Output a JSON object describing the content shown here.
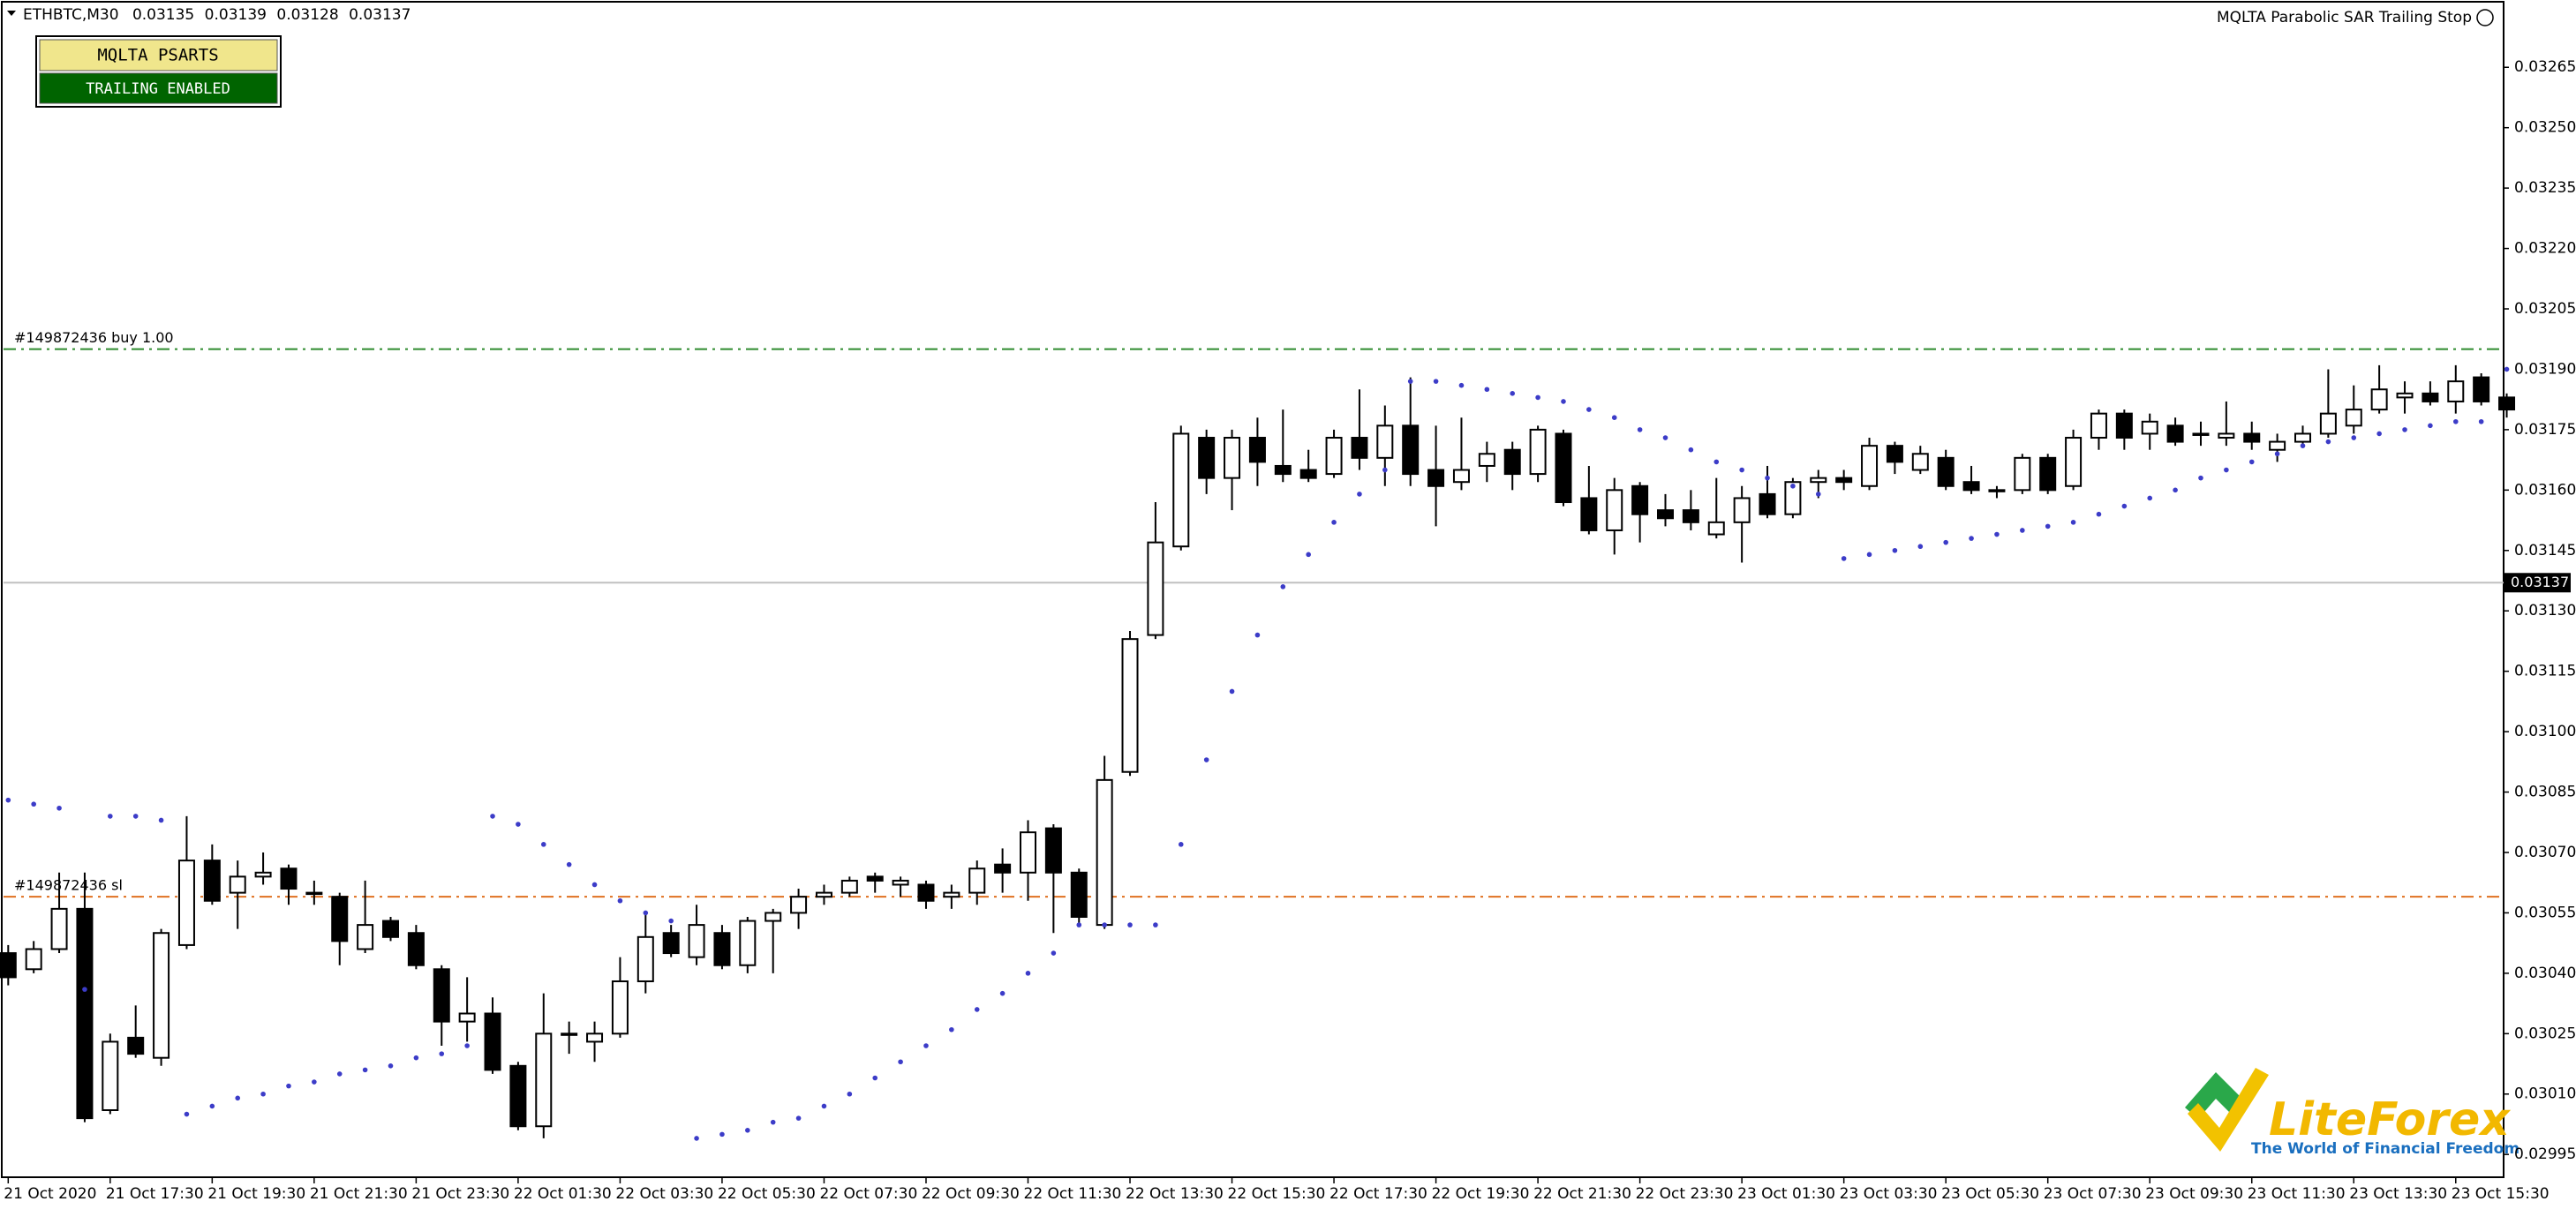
{
  "chart_data": {
    "type": "candlestick",
    "symbol": "ETHBTC,M30",
    "header_prices": [
      0.03135,
      0.03139,
      0.03128,
      0.03137
    ],
    "indicator_name": "MQLTA Parabolic SAR Trailing Stop",
    "panel": {
      "title": "MQLTA PSARTS",
      "status": "TRAILING ENABLED"
    },
    "logo": {
      "name": "LiteForex",
      "tagline": "The World of Financial Freedom"
    },
    "categories": [
      "21 Oct 2020",
      null,
      null,
      null,
      "21 Oct 17:30",
      null,
      null,
      null,
      "21 Oct 19:30",
      null,
      null,
      null,
      "21 Oct 21:30",
      null,
      null,
      null,
      "21 Oct 23:30",
      null,
      null,
      null,
      "22 Oct 01:30",
      null,
      null,
      null,
      "22 Oct 03:30",
      null,
      null,
      null,
      "22 Oct 05:30",
      null,
      null,
      null,
      "22 Oct 07:30",
      null,
      null,
      null,
      "22 Oct 09:30",
      null,
      null,
      null,
      "22 Oct 11:30",
      null,
      null,
      null,
      "22 Oct 13:30",
      null,
      null,
      null,
      "22 Oct 15:30",
      null,
      null,
      null,
      "22 Oct 17:30",
      null,
      null,
      null,
      "22 Oct 19:30",
      null,
      null,
      null,
      "22 Oct 21:30",
      null,
      null,
      null,
      "22 Oct 23:30",
      null,
      null,
      null,
      "23 Oct 01:30",
      null,
      null,
      null,
      "23 Oct 03:30",
      null,
      null,
      null,
      "23 Oct 05:30",
      null,
      null,
      null,
      "23 Oct 07:30",
      null,
      null,
      null,
      "23 Oct 09:30",
      null,
      null,
      null,
      "23 Oct 11:30",
      null,
      null,
      null,
      "23 Oct 13:30",
      null,
      null,
      null,
      "23 Oct 15:30",
      null,
      null
    ],
    "ohlc": [
      [
        0.03045,
        0.03047,
        0.03037,
        0.03039
      ],
      [
        0.03041,
        0.03048,
        0.0304,
        0.03046
      ],
      [
        0.03046,
        0.03065,
        0.03045,
        0.03056
      ],
      [
        0.03056,
        0.03065,
        0.03003,
        0.03004
      ],
      [
        0.03006,
        0.03025,
        0.03005,
        0.03023
      ],
      [
        0.03024,
        0.03032,
        0.03019,
        0.0302
      ],
      [
        0.03019,
        0.03051,
        0.03017,
        0.0305
      ],
      [
        0.03047,
        0.03079,
        0.03046,
        0.03068
      ],
      [
        0.03068,
        0.03072,
        0.03057,
        0.03058
      ],
      [
        0.0306,
        0.03068,
        0.03051,
        0.03064
      ],
      [
        0.03064,
        0.0307,
        0.03062,
        0.03065
      ],
      [
        0.03066,
        0.03067,
        0.03057,
        0.03061
      ],
      [
        0.0306,
        0.03063,
        0.03057,
        0.0306
      ],
      [
        0.03059,
        0.0306,
        0.03042,
        0.03048
      ],
      [
        0.03046,
        0.03063,
        0.03045,
        0.03052
      ],
      [
        0.03053,
        0.03054,
        0.03048,
        0.03049
      ],
      [
        0.0305,
        0.03052,
        0.03041,
        0.03042
      ],
      [
        0.03041,
        0.03042,
        0.03022,
        0.03028
      ],
      [
        0.03028,
        0.03039,
        0.03023,
        0.0303
      ],
      [
        0.0303,
        0.03034,
        0.03015,
        0.03016
      ],
      [
        0.03017,
        0.03018,
        0.03001,
        0.03002
      ],
      [
        0.03002,
        0.03035,
        0.02999,
        0.03025
      ],
      [
        0.03025,
        0.03028,
        0.0302,
        0.03025
      ],
      [
        0.03023,
        0.03028,
        0.03018,
        0.03025
      ],
      [
        0.03025,
        0.03044,
        0.03024,
        0.03038
      ],
      [
        0.03038,
        0.03055,
        0.03035,
        0.03049
      ],
      [
        0.0305,
        0.03052,
        0.03044,
        0.03045
      ],
      [
        0.03044,
        0.03057,
        0.03042,
        0.03052
      ],
      [
        0.0305,
        0.03052,
        0.03041,
        0.03042
      ],
      [
        0.03042,
        0.03054,
        0.0304,
        0.03053
      ],
      [
        0.03053,
        0.03056,
        0.0304,
        0.03055
      ],
      [
        0.03055,
        0.03061,
        0.03051,
        0.03059
      ],
      [
        0.03059,
        0.03062,
        0.03057,
        0.0306
      ],
      [
        0.0306,
        0.03064,
        0.03059,
        0.03063
      ],
      [
        0.03064,
        0.03065,
        0.0306,
        0.03063
      ],
      [
        0.03062,
        0.03064,
        0.03059,
        0.03063
      ],
      [
        0.03062,
        0.03063,
        0.03056,
        0.03058
      ],
      [
        0.03059,
        0.03062,
        0.03056,
        0.0306
      ],
      [
        0.0306,
        0.03068,
        0.03057,
        0.03066
      ],
      [
        0.03067,
        0.03071,
        0.0306,
        0.03065
      ],
      [
        0.03065,
        0.03078,
        0.03058,
        0.03075
      ],
      [
        0.03076,
        0.03077,
        0.0305,
        0.03065
      ],
      [
        0.03065,
        0.03066,
        0.03052,
        0.03054
      ],
      [
        0.03052,
        0.03094,
        0.03051,
        0.03088
      ],
      [
        0.0309,
        0.03125,
        0.03089,
        0.03123
      ],
      [
        0.03124,
        0.03157,
        0.03123,
        0.03147
      ],
      [
        0.03146,
        0.03176,
        0.03145,
        0.03174
      ],
      [
        0.03173,
        0.03175,
        0.03159,
        0.03163
      ],
      [
        0.03163,
        0.03175,
        0.03155,
        0.03173
      ],
      [
        0.03173,
        0.03178,
        0.03161,
        0.03167
      ],
      [
        0.03166,
        0.0318,
        0.03162,
        0.03164
      ],
      [
        0.03165,
        0.0317,
        0.03162,
        0.03163
      ],
      [
        0.03164,
        0.03175,
        0.03163,
        0.03173
      ],
      [
        0.03173,
        0.03185,
        0.03165,
        0.03168
      ],
      [
        0.03168,
        0.03181,
        0.03161,
        0.03176
      ],
      [
        0.03176,
        0.03188,
        0.03161,
        0.03164
      ],
      [
        0.03165,
        0.03176,
        0.03151,
        0.03161
      ],
      [
        0.03162,
        0.03178,
        0.0316,
        0.03165
      ],
      [
        0.03166,
        0.03172,
        0.03162,
        0.03169
      ],
      [
        0.0317,
        0.03172,
        0.0316,
        0.03164
      ],
      [
        0.03164,
        0.03176,
        0.03162,
        0.03175
      ],
      [
        0.03174,
        0.03175,
        0.03156,
        0.03157
      ],
      [
        0.03158,
        0.03166,
        0.03149,
        0.0315
      ],
      [
        0.0315,
        0.03163,
        0.03144,
        0.0316
      ],
      [
        0.03161,
        0.03162,
        0.03147,
        0.03154
      ],
      [
        0.03155,
        0.03159,
        0.03151,
        0.03153
      ],
      [
        0.03155,
        0.0316,
        0.0315,
        0.03152
      ],
      [
        0.03149,
        0.03163,
        0.03148,
        0.03152
      ],
      [
        0.03152,
        0.03161,
        0.03142,
        0.03158
      ],
      [
        0.03159,
        0.03166,
        0.03153,
        0.03154
      ],
      [
        0.03154,
        0.03163,
        0.03153,
        0.03162
      ],
      [
        0.03162,
        0.03165,
        0.03158,
        0.03163
      ],
      [
        0.03163,
        0.03165,
        0.0316,
        0.03162
      ],
      [
        0.03161,
        0.03173,
        0.0316,
        0.03171
      ],
      [
        0.03171,
        0.03172,
        0.03164,
        0.03167
      ],
      [
        0.03165,
        0.03171,
        0.03164,
        0.03169
      ],
      [
        0.03168,
        0.0317,
        0.0316,
        0.03161
      ],
      [
        0.03162,
        0.03166,
        0.03159,
        0.0316
      ],
      [
        0.0316,
        0.03161,
        0.03158,
        0.0316
      ],
      [
        0.0316,
        0.03169,
        0.03159,
        0.03168
      ],
      [
        0.03168,
        0.03169,
        0.03159,
        0.0316
      ],
      [
        0.03161,
        0.03175,
        0.0316,
        0.03173
      ],
      [
        0.03173,
        0.0318,
        0.0317,
        0.03179
      ],
      [
        0.03179,
        0.0318,
        0.0317,
        0.03173
      ],
      [
        0.03174,
        0.03179,
        0.0317,
        0.03177
      ],
      [
        0.03176,
        0.03178,
        0.03171,
        0.03172
      ],
      [
        0.03174,
        0.03177,
        0.03171,
        0.03174
      ],
      [
        0.03173,
        0.03182,
        0.03171,
        0.03174
      ],
      [
        0.03174,
        0.03177,
        0.0317,
        0.03172
      ],
      [
        0.0317,
        0.03174,
        0.03167,
        0.03172
      ],
      [
        0.03172,
        0.03176,
        0.03171,
        0.03174
      ],
      [
        0.03174,
        0.0319,
        0.03173,
        0.03179
      ],
      [
        0.03176,
        0.03186,
        0.03174,
        0.0318
      ],
      [
        0.0318,
        0.03191,
        0.03179,
        0.03185
      ],
      [
        0.03183,
        0.03187,
        0.03179,
        0.03184
      ],
      [
        0.03184,
        0.03187,
        0.03181,
        0.03182
      ],
      [
        0.03182,
        0.03191,
        0.03179,
        0.03187
      ],
      [
        0.03188,
        0.03189,
        0.03181,
        0.03182
      ],
      [
        0.03183,
        0.03184,
        0.03178,
        0.0318
      ]
    ],
    "sar": [
      0.03083,
      0.03082,
      0.03081,
      0.03036,
      0.03079,
      0.03079,
      0.03078,
      0.03005,
      0.03007,
      0.03009,
      0.0301,
      0.03012,
      0.03013,
      0.03015,
      0.03016,
      0.03017,
      0.03019,
      0.0302,
      0.03022,
      0.03079,
      0.03077,
      0.03072,
      0.03067,
      0.03062,
      0.03058,
      0.03055,
      0.03053,
      0.02999,
      0.03,
      0.03001,
      0.03003,
      0.03004,
      0.03007,
      0.0301,
      0.03014,
      0.03018,
      0.03022,
      0.03026,
      0.03031,
      0.03035,
      0.0304,
      0.03045,
      0.03052,
      0.03052,
      0.03052,
      0.03052,
      0.03072,
      0.03093,
      0.0311,
      0.03124,
      0.03136,
      0.03144,
      0.03152,
      0.03159,
      0.03165,
      0.03187,
      0.03187,
      0.03186,
      0.03185,
      0.03184,
      0.03183,
      0.03182,
      0.0318,
      0.03178,
      0.03175,
      0.03173,
      0.0317,
      0.03167,
      0.03165,
      0.03163,
      0.03161,
      0.03159,
      0.03143,
      0.03144,
      0.03145,
      0.03146,
      0.03147,
      0.03148,
      0.03149,
      0.0315,
      0.03151,
      0.03152,
      0.03154,
      0.03156,
      0.03158,
      0.0316,
      0.03163,
      0.03165,
      0.03167,
      0.03169,
      0.03171,
      0.03172,
      0.03173,
      0.03174,
      0.03175,
      0.03176,
      0.03177,
      0.03177,
      0.0319
    ],
    "sar_color": "#3c3cc8",
    "levels": [
      {
        "label": "#149872436 buy 1.00",
        "value": 0.03195,
        "color": "#2e8b2e"
      },
      {
        "label": "#149872436 sl",
        "value": 0.03059,
        "color": "#e07020"
      }
    ],
    "bid": 0.03137,
    "ylim": [
      0.0299,
      0.0328
    ],
    "yticks": [
      0.03265,
      {
        "value": 0.0325,
        "label": "0.03250"
      },
      0.03235,
      {
        "value": 0.0322,
        "label": "0.03220"
      },
      0.03205,
      {
        "value": 0.0319,
        "label": "0.03190"
      },
      0.03175,
      {
        "value": 0.0316,
        "label": "0.03160"
      },
      0.03145,
      {
        "value": 0.0313,
        "label": "0.03130"
      },
      0.03115,
      {
        "value": 0.031,
        "label": "0.03100"
      },
      0.03085,
      {
        "value": 0.0307,
        "label": "0.03070"
      },
      0.03055,
      {
        "value": 0.0304,
        "label": "0.03040"
      },
      0.03025,
      {
        "value": 0.0301,
        "label": "0.03010"
      },
      0.02995
    ]
  }
}
